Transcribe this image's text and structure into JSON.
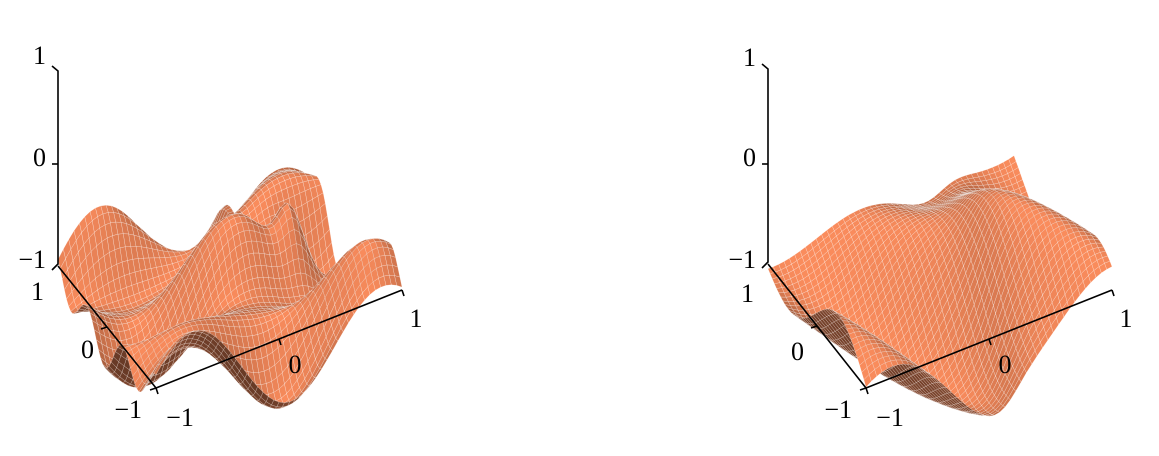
{
  "chart_data": [
    {
      "type": "surface",
      "surface_color": "#c8704a",
      "mesh_color": "#ffffff",
      "grid": true,
      "xlim": [
        -1,
        1
      ],
      "ylim": [
        -1,
        1
      ],
      "zlim": [
        -1,
        1
      ],
      "x_ticks": [
        "−1",
        "0",
        "1"
      ],
      "y_ticks": [
        "−1",
        "0",
        "1"
      ],
      "z_ticks": [
        "−1",
        "0",
        "1"
      ]
    },
    {
      "type": "surface",
      "surface_color": "#c8704a",
      "mesh_color": "#ffffff",
      "grid": true,
      "xlim": [
        -1,
        1
      ],
      "ylim": [
        -1,
        1
      ],
      "zlim": [
        -1,
        1
      ],
      "x_ticks": [
        "−1",
        "0",
        "1"
      ],
      "y_ticks": [
        "−1",
        "0",
        "1"
      ],
      "z_ticks": [
        "−1",
        "0",
        "1"
      ]
    }
  ]
}
